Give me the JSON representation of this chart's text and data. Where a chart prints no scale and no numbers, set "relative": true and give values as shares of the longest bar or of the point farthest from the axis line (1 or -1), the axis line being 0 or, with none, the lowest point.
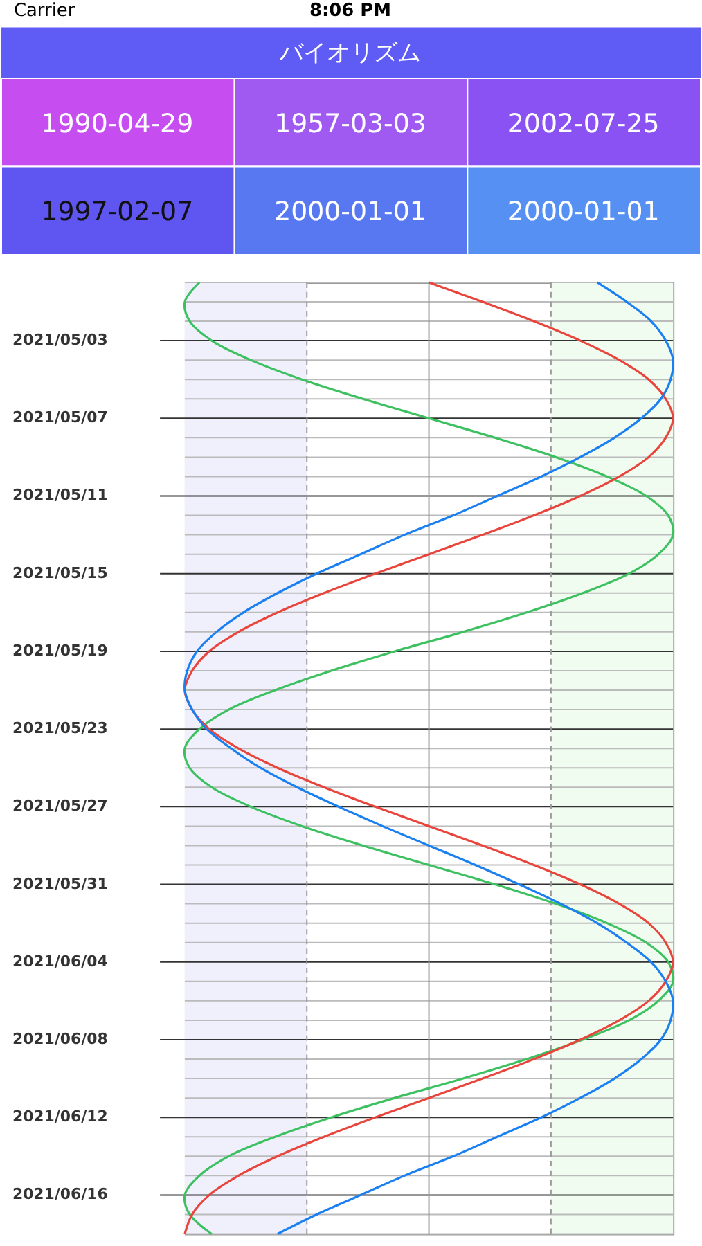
{
  "chart_data": {
    "type": "line",
    "title": "バイオリズム",
    "orientation": "horizontal",
    "relative": true,
    "annotations": [
      "Carrier",
      "8:06 PM",
      "1990-04-29",
      "1957-03-03",
      "2002-07-25",
      "1997-02-07",
      "2000-01-01",
      "2000-01-01"
    ],
    "x": [
      "2021-04-30",
      "2021-05-01",
      "2021-05-02",
      "2021-05-03",
      "2021-05-04",
      "2021-05-05",
      "2021-05-06",
      "2021-05-07",
      "2021-05-08",
      "2021-05-09",
      "2021-05-10",
      "2021-05-11",
      "2021-05-12",
      "2021-05-13",
      "2021-05-14",
      "2021-05-15",
      "2021-05-16",
      "2021-05-17",
      "2021-05-18",
      "2021-05-19",
      "2021-05-20",
      "2021-05-21",
      "2021-05-22",
      "2021-05-23",
      "2021-05-24",
      "2021-05-25",
      "2021-05-26",
      "2021-05-27",
      "2021-05-28",
      "2021-05-29",
      "2021-05-30",
      "2021-05-31",
      "2021-06-01",
      "2021-06-02",
      "2021-06-03",
      "2021-06-04",
      "2021-06-05",
      "2021-06-06",
      "2021-06-07",
      "2021-06-08",
      "2021-06-09",
      "2021-06-10",
      "2021-06-11",
      "2021-06-12",
      "2021-06-13",
      "2021-06-14",
      "2021-06-15",
      "2021-06-16",
      "2021-06-17",
      "2021-06-18"
    ],
    "series": [
      {
        "color": "#3cc060",
        "values": [
          -0.94,
          -1.0,
          -0.98,
          -0.89,
          -0.73,
          -0.52,
          -0.27,
          0,
          0.27,
          0.52,
          0.73,
          0.89,
          0.98,
          1.0,
          0.94,
          0.82,
          0.63,
          0.4,
          0.14,
          -0.14,
          -0.4,
          -0.63,
          -0.82,
          -0.94,
          -1.0,
          -0.98,
          -0.89,
          -0.73,
          -0.52,
          -0.27,
          0,
          0.27,
          0.52,
          0.73,
          0.89,
          0.98,
          1.0,
          0.94,
          0.82,
          0.63,
          0.4,
          0.14,
          -0.14,
          -0.4,
          -0.63,
          -0.82,
          -0.94,
          -1.0,
          -0.98,
          -0.89
        ]
      },
      {
        "color": "#e8453c",
        "values": [
          0,
          0.22,
          0.43,
          0.62,
          0.78,
          0.9,
          0.97,
          1.0,
          0.97,
          0.9,
          0.78,
          0.62,
          0.43,
          0.22,
          0,
          -0.22,
          -0.43,
          -0.62,
          -0.78,
          -0.9,
          -0.97,
          -1.0,
          -0.97,
          -0.9,
          -0.78,
          -0.62,
          -0.43,
          -0.22,
          0,
          0.22,
          0.43,
          0.62,
          0.78,
          0.9,
          0.97,
          1.0,
          0.97,
          0.9,
          0.78,
          0.62,
          0.43,
          0.22,
          0,
          -0.22,
          -0.43,
          -0.62,
          -0.78,
          -0.9,
          -0.97,
          -1.0
        ]
      },
      {
        "color": "#1a7ff0",
        "values": [
          0.69,
          0.81,
          0.91,
          0.97,
          1.0,
          0.99,
          0.95,
          0.87,
          0.76,
          0.62,
          0.46,
          0.28,
          0.1,
          -0.1,
          -0.28,
          -0.46,
          -0.62,
          -0.76,
          -0.87,
          -0.95,
          -0.99,
          -1.0,
          -0.97,
          -0.91,
          -0.81,
          -0.69,
          -0.54,
          -0.37,
          -0.19,
          0,
          0.19,
          0.37,
          0.54,
          0.69,
          0.81,
          0.91,
          0.97,
          1.0,
          0.99,
          0.95,
          0.87,
          0.76,
          0.62,
          0.46,
          0.28,
          0.1,
          -0.1,
          -0.28,
          -0.46,
          -0.62
        ]
      }
    ],
    "ylim": [
      "2021-06-18",
      "2021-04-30"
    ],
    "yticks": [
      {
        "value": "2021-04-30",
        "label": null
      },
      {
        "value": "2021-05-01",
        "label": null
      },
      {
        "value": "2021-05-02",
        "label": null
      },
      {
        "value": "2021-05-03",
        "label": "2021/05/03"
      },
      {
        "value": "2021-05-04",
        "label": null
      },
      {
        "value": "2021-05-05",
        "label": null
      },
      {
        "value": "2021-05-06",
        "label": null
      },
      {
        "value": "2021-05-07",
        "label": "2021/05/07"
      },
      {
        "value": "2021-05-08",
        "label": null
      },
      {
        "value": "2021-05-09",
        "label": null
      },
      {
        "value": "2021-05-10",
        "label": null
      },
      {
        "value": "2021-05-11",
        "label": "2021/05/11"
      },
      {
        "value": "2021-05-12",
        "label": null
      },
      {
        "value": "2021-05-13",
        "label": null
      },
      {
        "value": "2021-05-14",
        "label": null
      },
      {
        "value": "2021-05-15",
        "label": "2021/05/15"
      },
      {
        "value": "2021-05-16",
        "label": null
      },
      {
        "value": "2021-05-17",
        "label": null
      },
      {
        "value": "2021-05-18",
        "label": null
      },
      {
        "value": "2021-05-19",
        "label": "2021/05/19"
      },
      {
        "value": "2021-05-20",
        "label": null
      },
      {
        "value": "2021-05-21",
        "label": null
      },
      {
        "value": "2021-05-22",
        "label": null
      },
      {
        "value": "2021-05-23",
        "label": "2021/05/23"
      },
      {
        "value": "2021-05-24",
        "label": null
      },
      {
        "value": "2021-05-25",
        "label": null
      },
      {
        "value": "2021-05-26",
        "label": null
      },
      {
        "value": "2021-05-27",
        "label": "2021/05/27"
      },
      {
        "value": "2021-05-28",
        "label": null
      },
      {
        "value": "2021-05-29",
        "label": null
      },
      {
        "value": "2021-05-30",
        "label": null
      },
      {
        "value": "2021-05-31",
        "label": "2021/05/31"
      },
      {
        "value": "2021-06-01",
        "label": null
      },
      {
        "value": "2021-06-02",
        "label": null
      },
      {
        "value": "2021-06-03",
        "label": null
      },
      {
        "value": "2021-06-04",
        "label": "2021/06/04"
      },
      {
        "value": "2021-06-05",
        "label": null
      },
      {
        "value": "2021-06-06",
        "label": null
      },
      {
        "value": "2021-06-07",
        "label": null
      },
      {
        "value": "2021-06-08",
        "label": "2021/06/08"
      },
      {
        "value": "2021-06-09",
        "label": null
      },
      {
        "value": "2021-06-10",
        "label": null
      },
      {
        "value": "2021-06-11",
        "label": null
      },
      {
        "value": "2021-06-12",
        "label": "2021/06/12"
      },
      {
        "value": "2021-06-13",
        "label": null
      },
      {
        "value": "2021-06-14",
        "label": null
      },
      {
        "value": "2021-06-15",
        "label": null
      },
      {
        "value": "2021-06-16",
        "label": "2021/06/16"
      },
      {
        "value": "2021-06-17",
        "label": null
      },
      {
        "value": "2021-06-18",
        "label": null
      }
    ],
    "bands": [
      {
        "axis": "x",
        "from": -1,
        "to": -0.5,
        "color": "#f0f0fd"
      },
      {
        "axis": "x",
        "from": 0.5,
        "to": 1,
        "color": "#f1fcf0"
      }
    ],
    "ref_lines": [
      {
        "axis": "x",
        "value": -0.5,
        "color": "#999999",
        "line_style": "dashed"
      },
      {
        "axis": "x",
        "value": 0,
        "color": "#999999",
        "line_style": "solid"
      },
      {
        "axis": "x",
        "value": 0.5,
        "color": "#999999",
        "line_style": "dashed"
      }
    ],
    "grid": true,
    "legend": false,
    "marker": "none",
    "line_style": "solid"
  }
}
